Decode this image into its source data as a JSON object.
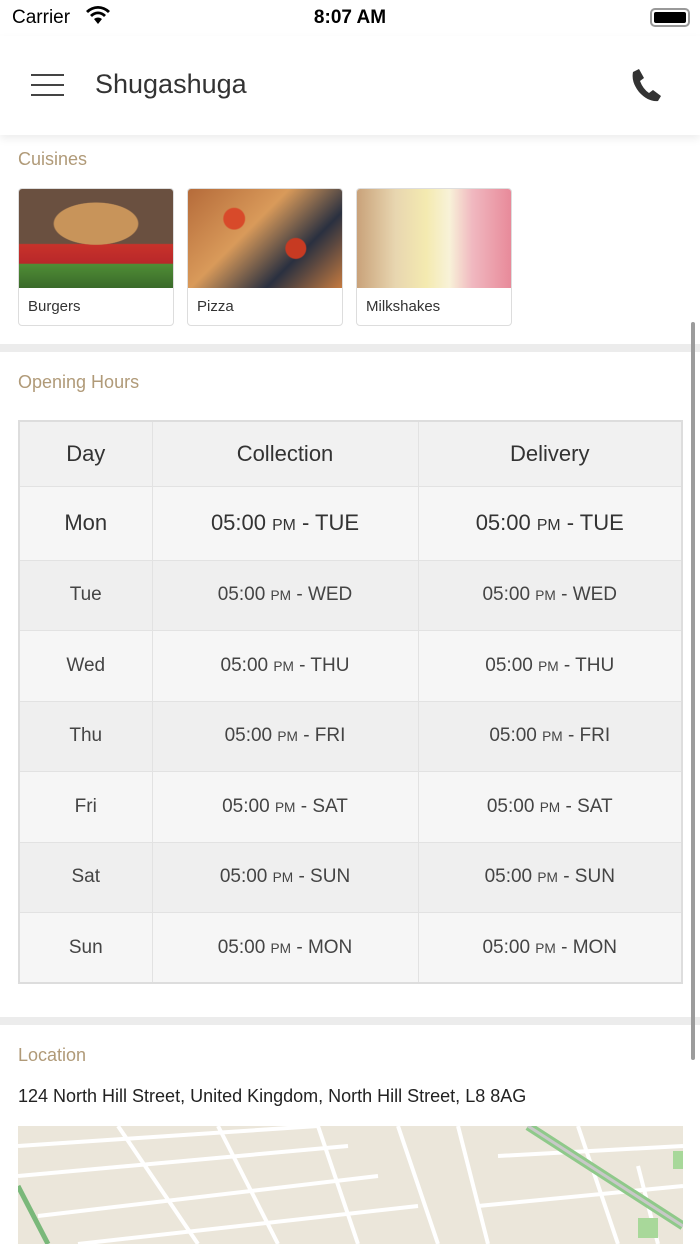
{
  "status_bar": {
    "carrier": "Carrier",
    "time": "8:07 AM"
  },
  "header": {
    "title": "Shugashuga",
    "menu_icon": "hamburger-icon",
    "call_icon": "phone-icon"
  },
  "cuisines": {
    "label": "Cuisines",
    "items": [
      {
        "label": "Burgers"
      },
      {
        "label": "Pizza"
      },
      {
        "label": "Milkshakes"
      }
    ]
  },
  "opening_hours": {
    "label": "Opening Hours",
    "columns": [
      "Day",
      "Collection",
      "Delivery"
    ],
    "rows": [
      {
        "day": "Mon",
        "collection_time": "05:00",
        "collection_ampm": "PM",
        "collection_end": "- TUE",
        "delivery_time": "05:00",
        "delivery_ampm": "PM",
        "delivery_end": "- TUE"
      },
      {
        "day": "Tue",
        "collection_time": "05:00",
        "collection_ampm": "PM",
        "collection_end": "- WED",
        "delivery_time": "05:00",
        "delivery_ampm": "PM",
        "delivery_end": "- WED"
      },
      {
        "day": "Wed",
        "collection_time": "05:00",
        "collection_ampm": "PM",
        "collection_end": "- THU",
        "delivery_time": "05:00",
        "delivery_ampm": "PM",
        "delivery_end": "- THU"
      },
      {
        "day": "Thu",
        "collection_time": "05:00",
        "collection_ampm": "PM",
        "collection_end": "- FRI",
        "delivery_time": "05:00",
        "delivery_ampm": "PM",
        "delivery_end": "- FRI"
      },
      {
        "day": "Fri",
        "collection_time": "05:00",
        "collection_ampm": "PM",
        "collection_end": "- SAT",
        "delivery_time": "05:00",
        "delivery_ampm": "PM",
        "delivery_end": "- SAT"
      },
      {
        "day": "Sat",
        "collection_time": "05:00",
        "collection_ampm": "PM",
        "collection_end": "- SUN",
        "delivery_time": "05:00",
        "delivery_ampm": "PM",
        "delivery_end": "- SUN"
      },
      {
        "day": "Sun",
        "collection_time": "05:00",
        "collection_ampm": "PM",
        "collection_end": "- MON",
        "delivery_time": "05:00",
        "delivery_ampm": "PM",
        "delivery_end": "- MON"
      }
    ]
  },
  "location": {
    "label": "Location",
    "address": "124 North Hill Street, United Kingdom, North Hill Street, L8 8AG"
  }
}
